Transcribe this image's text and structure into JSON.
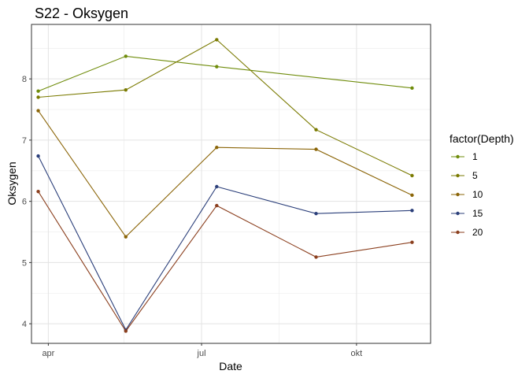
{
  "chart_data": {
    "type": "line",
    "title": "S22  -  Oksygen",
    "xlabel": "Date",
    "ylabel": "Oksygen",
    "x_axis": {
      "type": "date",
      "range": [
        "2022-03-22",
        "2022-11-14"
      ],
      "ticks": [
        {
          "date": "2022-04-01",
          "label": "apr"
        },
        {
          "date": "2022-07-01",
          "label": "jul"
        },
        {
          "date": "2022-10-01",
          "label": "okt"
        }
      ],
      "minor_ticks": [
        "2022-05-16",
        "2022-08-16"
      ]
    },
    "y_axis": {
      "range": [
        3.68,
        8.89
      ],
      "ticks": [
        4,
        5,
        6,
        7,
        8
      ],
      "minor_ticks": [
        4.5,
        5.5,
        6.5,
        7.5,
        8.5
      ]
    },
    "grid": true,
    "legend": {
      "title": "factor(Depth)",
      "position": "right"
    },
    "series": [
      {
        "name": "1",
        "color": "#6f8c0b",
        "points": [
          {
            "date": "2022-03-26",
            "value": 7.8
          },
          {
            "date": "2022-05-17",
            "value": 8.37
          },
          {
            "date": "2022-07-10",
            "value": 8.2
          },
          {
            "date": "2022-11-03",
            "value": 7.85
          }
        ]
      },
      {
        "name": "5",
        "color": "#7a7a00",
        "points": [
          {
            "date": "2022-03-26",
            "value": 7.7
          },
          {
            "date": "2022-05-17",
            "value": 7.82
          },
          {
            "date": "2022-07-10",
            "value": 8.64
          },
          {
            "date": "2022-09-07",
            "value": 7.17
          },
          {
            "date": "2022-11-03",
            "value": 6.42
          }
        ]
      },
      {
        "name": "10",
        "color": "#8b6508",
        "points": [
          {
            "date": "2022-03-26",
            "value": 7.48
          },
          {
            "date": "2022-05-17",
            "value": 5.42
          },
          {
            "date": "2022-07-10",
            "value": 6.88
          },
          {
            "date": "2022-09-07",
            "value": 6.85
          },
          {
            "date": "2022-11-03",
            "value": 6.1
          }
        ]
      },
      {
        "name": "15",
        "color": "#2b3f7a",
        "points": [
          {
            "date": "2022-03-26",
            "value": 6.74
          },
          {
            "date": "2022-05-17",
            "value": 3.9
          },
          {
            "date": "2022-07-10",
            "value": 6.24
          },
          {
            "date": "2022-09-07",
            "value": 5.8
          },
          {
            "date": "2022-11-03",
            "value": 5.85
          }
        ]
      },
      {
        "name": "20",
        "color": "#8b3f1e",
        "points": [
          {
            "date": "2022-03-26",
            "value": 6.16
          },
          {
            "date": "2022-05-17",
            "value": 3.88
          },
          {
            "date": "2022-07-10",
            "value": 5.93
          },
          {
            "date": "2022-09-07",
            "value": 5.09
          },
          {
            "date": "2022-11-03",
            "value": 5.33
          }
        ]
      }
    ]
  }
}
